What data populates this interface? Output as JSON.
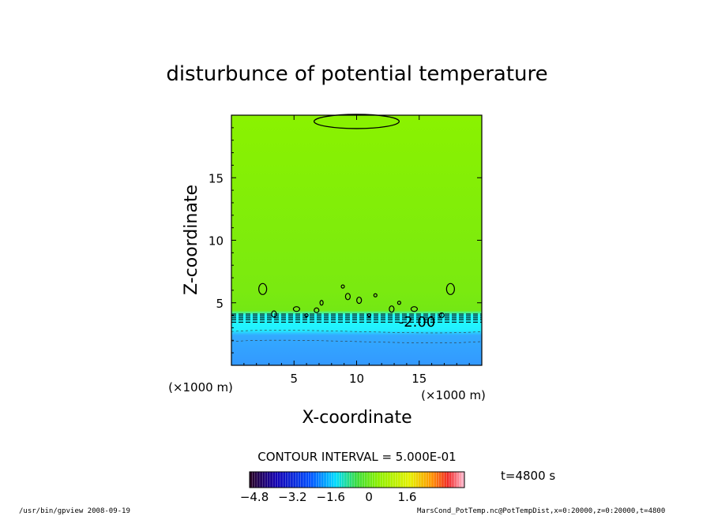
{
  "chart_data": {
    "type": "contour",
    "title": "disturbunce of potential temperature",
    "xlabel": "X-coordinate",
    "ylabel": "Z-coordinate",
    "x_unit": "(×1000 m)",
    "y_unit": "(×1000 m)",
    "xlim": [
      0,
      20
    ],
    "ylim": [
      0,
      20
    ],
    "x_ticks": [
      5,
      10,
      15
    ],
    "y_ticks": [
      5,
      10,
      15
    ],
    "contour_interval_text": "CONTOUR INTERVAL = 5.000E-01",
    "contour_label": "-2.00",
    "time_text": "t=4800 s",
    "colorbar": {
      "min": -5.0,
      "max": 4.0,
      "tick_values": [
        -4.8,
        -3.2,
        -1.6,
        0,
        1.6
      ],
      "tick_labels": [
        "−4.8",
        "−3.2",
        "−1.6",
        "0",
        "1.6"
      ]
    },
    "field": {
      "upper_value": -1.0,
      "lower_value": -2.5,
      "transition_height": 3.8,
      "colors": {
        "upper": "#88ee00",
        "lower": "#33aaff",
        "strip": "#22ffff"
      }
    }
  },
  "footer": {
    "left": "/usr/bin/gpview  2008-09-19",
    "right": "MarsCond_PotTemp.nc@PotTempDist,x=0:20000,z=0:20000,t=4800"
  }
}
